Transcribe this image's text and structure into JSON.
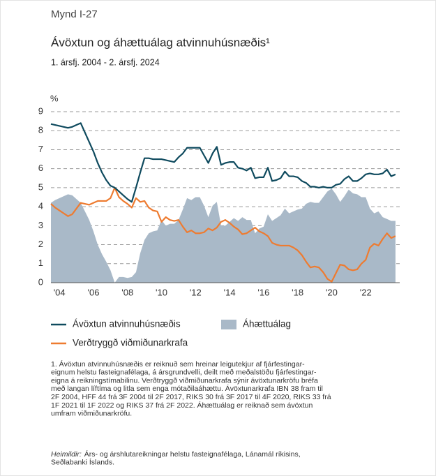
{
  "header": "Mynd I-27",
  "chart_data": {
    "type": "line",
    "title": "Ávöxtun og áhættuálag atvinnuhúsnæðis¹",
    "subtitle": "1. ársfj. 2004 - 2. ársfj. 2024",
    "ylabel": "%",
    "x": [
      2004,
      2004.25,
      2004.5,
      2004.75,
      2005,
      2005.25,
      2005.5,
      2005.75,
      2006,
      2006.25,
      2006.5,
      2006.75,
      2007,
      2007.25,
      2007.5,
      2007.75,
      2008,
      2008.25,
      2008.5,
      2008.75,
      2009,
      2009.25,
      2009.5,
      2009.75,
      2010,
      2010.25,
      2010.5,
      2010.75,
      2011,
      2011.25,
      2011.5,
      2011.75,
      2012,
      2012.25,
      2012.5,
      2012.75,
      2013,
      2013.25,
      2013.5,
      2013.75,
      2014,
      2014.25,
      2014.5,
      2014.75,
      2015,
      2015.25,
      2015.5,
      2015.75,
      2016,
      2016.25,
      2016.5,
      2016.75,
      2017,
      2017.25,
      2017.5,
      2017.75,
      2018,
      2018.25,
      2018.5,
      2018.75,
      2019,
      2019.25,
      2019.5,
      2019.75,
      2020,
      2020.25,
      2020.5,
      2020.75,
      2021,
      2021.25,
      2021.5,
      2021.75,
      2022,
      2022.25,
      2022.5,
      2022.75,
      2023,
      2023.25,
      2023.5,
      2023.75,
      2024,
      2024.25
    ],
    "series": [
      {
        "name": "Áhættuálag",
        "type": "area",
        "color": "#a9b9c8",
        "values": [
          4.2,
          4.35,
          4.45,
          4.55,
          4.65,
          4.6,
          4.4,
          4.2,
          3.75,
          3.3,
          2.7,
          2.0,
          1.5,
          1.1,
          0.65,
          0,
          0.3,
          0.3,
          0.25,
          0.3,
          0.55,
          1.55,
          2.25,
          2.6,
          2.7,
          2.75,
          3.3,
          3.0,
          3.1,
          3.1,
          3.3,
          3.85,
          4.45,
          4.35,
          4.5,
          4.5,
          4.05,
          3.45,
          4.05,
          4.25,
          3.0,
          3.0,
          3.2,
          3.4,
          3.25,
          3.45,
          3.3,
          3.3,
          2.6,
          2.85,
          2.95,
          3.6,
          3.25,
          3.4,
          3.55,
          3.9,
          3.65,
          3.75,
          3.85,
          3.9,
          4.15,
          4.25,
          4.2,
          4.2,
          4.5,
          4.8,
          4.95,
          4.65,
          4.25,
          4.55,
          4.9,
          4.7,
          4.65,
          4.5,
          4.5,
          3.9,
          3.65,
          3.75,
          3.45,
          3.35,
          3.25,
          3.25
        ]
      },
      {
        "name": "Verðtryggð viðmiðunarkrafa",
        "type": "line",
        "color": "#ee7b30",
        "values": [
          4.15,
          3.95,
          3.8,
          3.65,
          3.5,
          3.6,
          3.9,
          4.2,
          4.15,
          4.1,
          4.2,
          4.3,
          4.3,
          4.3,
          4.45,
          5.0,
          4.5,
          4.3,
          4.15,
          3.95,
          4.45,
          4.25,
          4.3,
          3.95,
          3.8,
          3.75,
          3.2,
          3.45,
          3.3,
          3.25,
          3.3,
          2.95,
          2.65,
          2.75,
          2.6,
          2.6,
          2.65,
          2.85,
          2.75,
          2.9,
          3.2,
          3.3,
          3.15,
          2.95,
          2.8,
          2.55,
          2.6,
          2.75,
          2.9,
          2.7,
          2.6,
          2.45,
          2.1,
          2.0,
          1.95,
          1.95,
          1.95,
          1.85,
          1.7,
          1.45,
          1.1,
          0.8,
          0.85,
          0.8,
          0.55,
          0.2,
          0.05,
          0.5,
          0.95,
          0.9,
          0.7,
          0.65,
          0.7,
          1.0,
          1.2,
          1.85,
          2.05,
          1.95,
          2.3,
          2.6,
          2.35,
          2.45
        ]
      },
      {
        "name": "Ávöxtun atvinnuhúsnæðis",
        "type": "line",
        "color": "#0e4a5e",
        "values": [
          8.35,
          8.3,
          8.25,
          8.2,
          8.15,
          8.2,
          8.3,
          8.4,
          7.9,
          7.4,
          6.9,
          6.3,
          5.8,
          5.4,
          5.1,
          5.0,
          4.8,
          4.6,
          4.4,
          4.25,
          5.0,
          5.8,
          6.55,
          6.55,
          6.5,
          6.5,
          6.5,
          6.45,
          6.4,
          6.35,
          6.6,
          6.8,
          7.1,
          7.1,
          7.1,
          7.1,
          6.7,
          6.3,
          6.8,
          7.15,
          6.2,
          6.3,
          6.35,
          6.35,
          6.05,
          6.0,
          5.9,
          6.05,
          5.5,
          5.55,
          5.55,
          6.05,
          5.35,
          5.4,
          5.5,
          5.85,
          5.6,
          5.6,
          5.55,
          5.35,
          5.25,
          5.05,
          5.05,
          5.0,
          5.05,
          5.0,
          5.0,
          5.15,
          5.2,
          5.45,
          5.6,
          5.35,
          5.35,
          5.5,
          5.7,
          5.75,
          5.7,
          5.7,
          5.75,
          5.95,
          5.6,
          5.7
        ]
      }
    ],
    "xlim": [
      2004,
      2024.5
    ],
    "xticks": [
      {
        "value": 2004.5,
        "label": "'04"
      },
      {
        "value": 2006.5,
        "label": "'06"
      },
      {
        "value": 2008.5,
        "label": "'08"
      },
      {
        "value": 2010.5,
        "label": "'10"
      },
      {
        "value": 2012.5,
        "label": "'12"
      },
      {
        "value": 2014.5,
        "label": "'14"
      },
      {
        "value": 2016.5,
        "label": "'16"
      },
      {
        "value": 2018.5,
        "label": "'18"
      },
      {
        "value": 2020.5,
        "label": "'20"
      },
      {
        "value": 2022.5,
        "label": "'22"
      }
    ],
    "ylim": [
      0,
      9
    ],
    "yticks": [
      0,
      1,
      2,
      3,
      4,
      5,
      6,
      7,
      8,
      9
    ],
    "grid": true
  },
  "footnote": [
    "1. Ávöxtun atvinnuhúsnæðis er reiknuð sem hreinar leigutekjur af fjárfestingar-",
    "eignum helstu fasteignafélaga, á ársgrundvelli, deilt með meðalstöðu fjárfestingar-",
    "eigna á reikningstímabilinu. Verðtryggð viðmiðunarkrafa sýnir ávöxtunarkröfu bréfa",
    "með langan líftíma og litla sem enga mótaðilaáhættu. Ávöxtunarkrafa IBN 38 fram til",
    "2F 2004, HFF 44 frá 3F 2004 til 2F 2017, RIKS 30 frá 3F 2017 til 4F 2020, RIKS 33 frá",
    "1F 2021 til 1F 2022 og RIKS 37 frá 2F 2022. Áhættuálag er reiknað sem ávöxtun",
    "umfram viðmiðunarkröfu."
  ],
  "source": {
    "label": "Heimildir:",
    "lines": [
      "Árs- og árshlutareikningar helstu fasteignafélaga, Lánamál ríkisins,",
      "Seðlabanki Íslands."
    ]
  }
}
